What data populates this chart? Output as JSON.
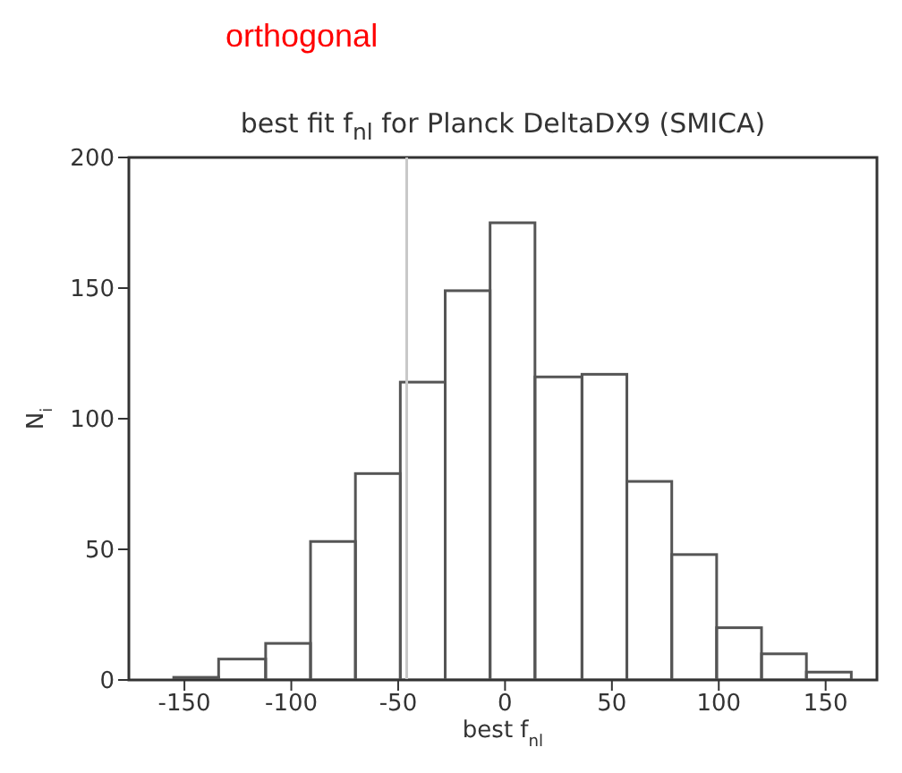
{
  "chart_data": {
    "type": "histogram",
    "title": "best fit f$_{nl}$ for Planck DeltaDX9 (SMICA)",
    "xlabel": "best f$_{nl}$",
    "ylabel": "N$_{i}$",
    "annotations": [
      "orthogonal"
    ],
    "bins": [
      -155,
      -134,
      -112,
      -91,
      -70,
      -49,
      -28,
      -7,
      14,
      36,
      57,
      78,
      99,
      120,
      141,
      162
    ],
    "values": [
      1,
      8,
      14,
      53,
      79,
      114,
      149,
      175,
      116,
      117,
      76,
      48,
      20,
      10,
      3
    ],
    "color": "#555555",
    "xlim": [
      -176,
      174
    ],
    "xticks": [
      -150,
      -100,
      -50,
      0,
      50,
      100,
      150
    ],
    "ylim": [
      0,
      200
    ],
    "yticks": [
      0,
      50,
      100,
      150,
      200
    ],
    "ref_lines": [
      {
        "axis": "x",
        "value": -46,
        "color": "#c8c8c8"
      }
    ],
    "grid": false,
    "legend": false
  }
}
